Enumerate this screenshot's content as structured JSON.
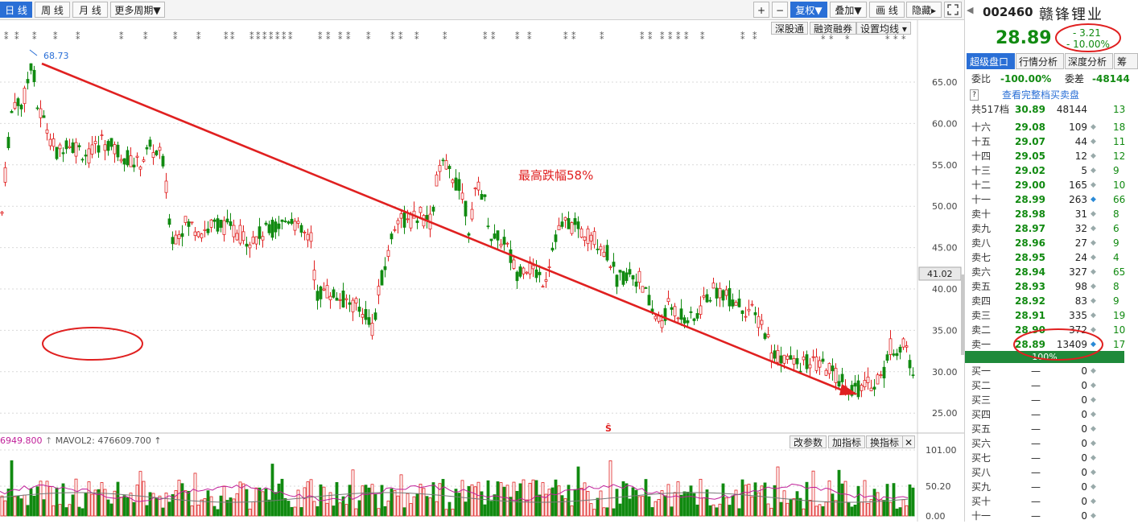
{
  "toolbar": {
    "tabs": [
      "日 线",
      "周 线",
      "月 线",
      "更多周期▼"
    ],
    "right_buttons": [
      "+",
      "−",
      "复权▼",
      "叠加▼",
      "画 线",
      "隐藏▸"
    ],
    "menu_icon": "expand-icon",
    "sub_buttons": [
      "深股通",
      "融资融券",
      "设置均线 ▾"
    ]
  },
  "chart": {
    "peak_label": "68.73",
    "current_price_tag": "41.02",
    "annotation": "最高跌幅58%",
    "s_marker": "Ŝ",
    "y_ticks": [
      "65.00",
      "60.00",
      "55.00",
      "50.00",
      "45.00",
      "40.00",
      "35.00",
      "30.00",
      "25.00"
    ],
    "arrow_color": "#e02020",
    "up_color": "#e02020",
    "down_color": "#118a11"
  },
  "volume": {
    "header_left": "6949.800",
    "header_mavol": "MAVOL2: 476609.700",
    "header_arrow": "↑",
    "buttons": [
      "改参数",
      "加指标",
      "换指标"
    ],
    "close_icon": "close-icon",
    "y_ticks": [
      "101.00",
      "50.20",
      "0.00"
    ]
  },
  "panel": {
    "code": "002460",
    "name": "赣锋锂业",
    "price": "28.89",
    "change": "- 3.21",
    "change_pct": "- 10.00%",
    "tabs": [
      "超级盘口",
      "行情分析",
      "深度分析",
      "筹"
    ],
    "webi_label": "委比",
    "webi_value": "-100.00%",
    "weicha_label": "委差",
    "weicha_value": "-48144",
    "view_full": "查看完整档买卖盘",
    "total_label": "共517档",
    "total_price": "30.89",
    "total_qty": "48144",
    "total_extra": "13",
    "sell_rows": [
      {
        "label": "十六",
        "price": "29.08",
        "qty": "109",
        "extra": "18"
      },
      {
        "label": "十五",
        "price": "29.07",
        "qty": "44",
        "extra": "11"
      },
      {
        "label": "十四",
        "price": "29.05",
        "qty": "12",
        "extra": "12"
      },
      {
        "label": "十三",
        "price": "29.02",
        "qty": "5",
        "extra": "9"
      },
      {
        "label": "十二",
        "price": "29.00",
        "qty": "165",
        "extra": "10"
      },
      {
        "label": "十一",
        "price": "28.99",
        "qty": "263",
        "extra": "66"
      },
      {
        "label": "卖十",
        "price": "28.98",
        "qty": "31",
        "extra": "8"
      },
      {
        "label": "卖九",
        "price": "28.97",
        "qty": "32",
        "extra": "6"
      },
      {
        "label": "卖八",
        "price": "28.96",
        "qty": "27",
        "extra": "9"
      },
      {
        "label": "卖七",
        "price": "28.95",
        "qty": "24",
        "extra": "4"
      },
      {
        "label": "卖六",
        "price": "28.94",
        "qty": "327",
        "extra": "65"
      },
      {
        "label": "卖五",
        "price": "28.93",
        "qty": "98",
        "extra": "8"
      },
      {
        "label": "卖四",
        "price": "28.92",
        "qty": "83",
        "extra": "9"
      },
      {
        "label": "卖三",
        "price": "28.91",
        "qty": "335",
        "extra": "19"
      },
      {
        "label": "卖二",
        "price": "28.90",
        "qty": "372",
        "extra": "10"
      },
      {
        "label": "卖一",
        "price": "28.89",
        "qty": "13409",
        "extra": "17"
      }
    ],
    "ratio_bar": "100%",
    "buy_rows": [
      {
        "label": "买一",
        "price": "—",
        "qty": "0"
      },
      {
        "label": "买二",
        "price": "—",
        "qty": "0"
      },
      {
        "label": "买三",
        "price": "—",
        "qty": "0"
      },
      {
        "label": "买四",
        "price": "—",
        "qty": "0"
      },
      {
        "label": "买五",
        "price": "—",
        "qty": "0"
      },
      {
        "label": "买六",
        "price": "—",
        "qty": "0"
      },
      {
        "label": "买七",
        "price": "—",
        "qty": "0"
      },
      {
        "label": "买八",
        "price": "—",
        "qty": "0"
      },
      {
        "label": "买九",
        "price": "—",
        "qty": "0"
      },
      {
        "label": "买十",
        "price": "—",
        "qty": "0"
      },
      {
        "label": "十一",
        "price": "—",
        "qty": "0"
      }
    ]
  }
}
